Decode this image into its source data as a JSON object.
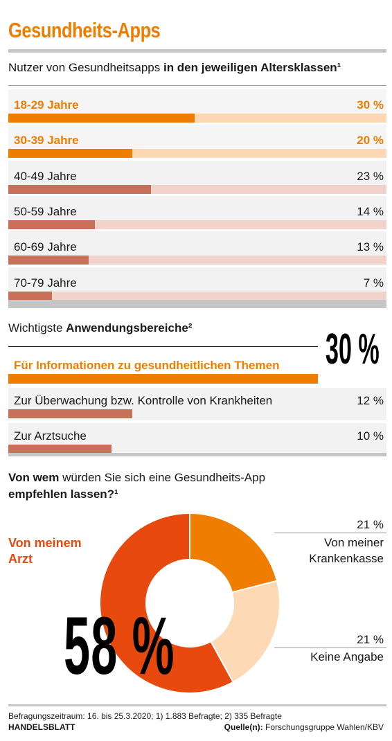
{
  "title": "Gesundheits-Apps",
  "section1": {
    "subtitle_plain": "Nutzer von Gesundheitsapps ",
    "subtitle_bold": "in den jeweiligen Altersklassen¹",
    "rows": [
      {
        "label": "18-29 Jahre",
        "value": 30,
        "value_label": "30 %",
        "highlight": true
      },
      {
        "label": "30-39 Jahre",
        "value": 20,
        "value_label": "20 %",
        "highlight": true
      },
      {
        "label": "40-49 Jahre",
        "value": 23,
        "value_label": "23 %",
        "highlight": false
      },
      {
        "label": "50-59 Jahre",
        "value": 14,
        "value_label": "14 %",
        "highlight": false
      },
      {
        "label": "60-69 Jahre",
        "value": 13,
        "value_label": "13 %",
        "highlight": false
      },
      {
        "label": "70-79 Jahre",
        "value": 7,
        "value_label": "7 %",
        "highlight": false
      }
    ]
  },
  "section2": {
    "subtitle_plain": "Wichtigste ",
    "subtitle_bold": "Anwendungsbereiche²",
    "rows": [
      {
        "label": "Für Informationen zu gesundheitlichen Themen",
        "value": 30,
        "value_label": "30 %",
        "highlight": true
      },
      {
        "label": "Zur Überwachung bzw. Kontrolle von Krankheiten",
        "value": 12,
        "value_label": "12 %",
        "highlight": false
      },
      {
        "label": "Zur Arztsuche",
        "value": 10,
        "value_label": "10 %",
        "highlight": false
      }
    ]
  },
  "section3": {
    "q_bold1": "Von wem",
    "q_plain": " würden Sie sich eine Gesundheits-App",
    "q_bold2": "empfehlen lassen?¹",
    "big_value": "58 %",
    "left_label_line1": "Von meinem",
    "left_label_line2": "Arzt",
    "right1_value": "21 %",
    "right1_line1": "Von meiner",
    "right1_line2": "Krankenkasse",
    "right2_value": "21 %",
    "right2_line1": "Keine Angabe"
  },
  "chart_data": [
    {
      "type": "bar",
      "title": "Nutzer von Gesundheitsapps in den jeweiligen Altersklassen¹",
      "categories": [
        "18-29 Jahre",
        "30-39 Jahre",
        "40-49 Jahre",
        "50-59 Jahre",
        "60-69 Jahre",
        "70-79 Jahre"
      ],
      "values": [
        30,
        20,
        23,
        14,
        13,
        7
      ],
      "unit": "%"
    },
    {
      "type": "bar",
      "title": "Wichtigste Anwendungsbereiche²",
      "categories": [
        "Für Informationen zu gesundheitlichen Themen",
        "Zur Überwachung bzw. Kontrolle von Krankheiten",
        "Zur Arztsuche"
      ],
      "values": [
        30,
        12,
        10
      ],
      "unit": "%"
    },
    {
      "type": "pie",
      "title": "Von wem würden Sie sich eine Gesundheits-App empfehlen lassen?¹",
      "categories": [
        "Von meiner Krankenkasse",
        "Keine Angabe",
        "Von meinem Arzt"
      ],
      "values": [
        21,
        21,
        58
      ],
      "unit": "%"
    }
  ],
  "colors": {
    "accent": "#ee7d00",
    "accent_light": "#fcd9b4",
    "muted": "#c9705a",
    "muted_light": "#f1d3cc",
    "donut_orange": "#ef7d00",
    "donut_peach": "#fdd9b5",
    "donut_red": "#e8490f",
    "rule": "#c6c6c6"
  },
  "footer": {
    "line1": "Befragungszeitraum: 16. bis 25.3.2020; 1) 1.883 Befragte; 2) 335 Befragte",
    "brand": "HANDELSBLATT",
    "source_bold": "Quelle(n):",
    "source_text": " Forschungsgruppe Wahlen/KBV"
  }
}
